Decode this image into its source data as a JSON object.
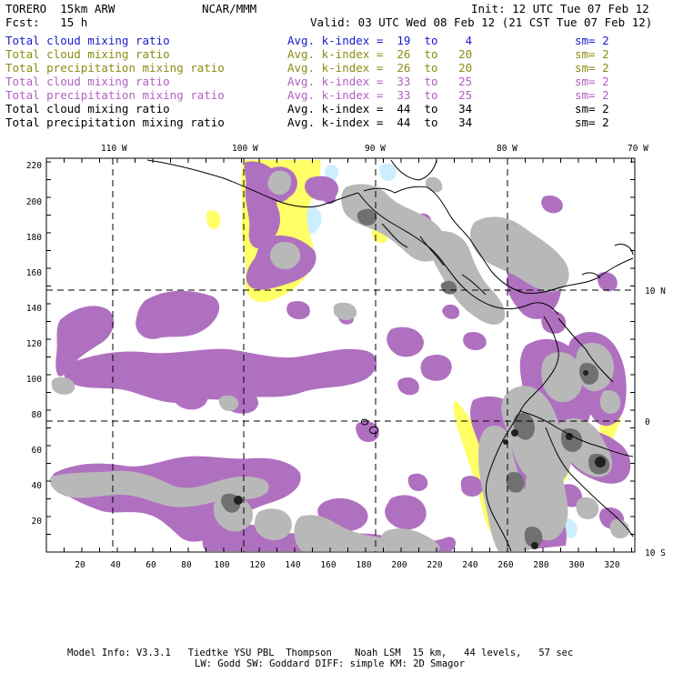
{
  "header": {
    "model": "TORERO  15km ARW",
    "org": "NCAR/MMM",
    "init": "Init: 12 UTC Tue 07 Feb 12",
    "fcst": "Fcst:   15 h",
    "valid": "Valid: 03 UTC Wed 08 Feb 12 (21 CST Tue 07 Feb 12)"
  },
  "legend": [
    {
      "field": "Total cloud mixing ratio",
      "index": "Avg. k-index =  19  to    4",
      "sm": "sm= 2",
      "color": "#1a1acc"
    },
    {
      "field": "Total cloud mixing ratio",
      "index": "Avg. k-index =  26  to   20",
      "sm": "sm= 2",
      "color": "#8c8c14"
    },
    {
      "field": "Total precipitation mixing ratio",
      "index": "Avg. k-index =  26  to   20",
      "sm": "sm= 2",
      "color": "#8c8c14"
    },
    {
      "field": "Total cloud mixing ratio",
      "index": "Avg. k-index =  33  to   25",
      "sm": "sm= 2",
      "color": "#b060c0"
    },
    {
      "field": "Total precipitation mixing ratio",
      "index": "Avg. k-index =  33  to   25",
      "sm": "sm= 2",
      "color": "#b060c0"
    },
    {
      "field": "Total cloud mixing ratio",
      "index": "Avg. k-index =  44  to   34",
      "sm": "sm= 2",
      "color": "#000000"
    },
    {
      "field": "Total precipitation mixing ratio",
      "index": "Avg. k-index =  44  to   34",
      "sm": "sm= 2",
      "color": "#000000"
    }
  ],
  "map": {
    "top_lon_labels": [
      "110 W",
      "100 W",
      "90 W",
      "80 W",
      "70 W"
    ],
    "right_lat_labels": [
      "10 N",
      "0",
      "10 S"
    ],
    "left_grid_labels": [
      "220",
      "200",
      "180",
      "160",
      "140",
      "120",
      "100",
      "80",
      "60",
      "40",
      "20"
    ],
    "bottom_grid_labels": [
      "20",
      "40",
      "60",
      "80",
      "100",
      "120",
      "140",
      "160",
      "180",
      "200",
      "220",
      "240",
      "260",
      "280",
      "300",
      "320"
    ],
    "colors": {
      "cyan": "#cceeff",
      "yellow": "#ffff66",
      "purple": "#b070c0",
      "gray_light": "#b8b8b8",
      "gray_dark": "#707070",
      "gray_black": "#202020"
    }
  },
  "footer": {
    "line1": "Model Info: V3.3.1   Tiedtke YSU PBL  Thompson    Noah LSM  15 km,   44 levels,   57 sec",
    "line2": "LW: Godd SW: Goddard DIFF: simple KM: 2D Smagor"
  }
}
